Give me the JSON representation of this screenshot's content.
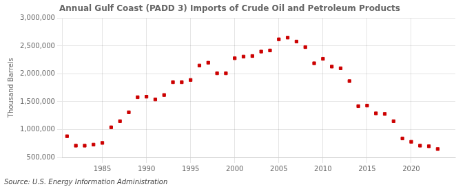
{
  "chart_data": {
    "type": "scatter",
    "title": "Annual Gulf Coast (PADD 3) Imports of Crude Oil and Petroleum Products",
    "ylabel": "Thousand Barrels",
    "annotation": "Source: U.S. Energy Information Administration",
    "color": "#cc0000",
    "marker": "square",
    "grid": true,
    "xlim": [
      1980.5,
      2025
    ],
    "xticks": [
      1985,
      1990,
      1995,
      2000,
      2005,
      2010,
      2015,
      2020
    ],
    "ylim": [
      500000,
      3000000
    ],
    "yticks": [
      {
        "value": 500000,
        "label": "500,000"
      },
      {
        "value": 1000000,
        "label": "1,000,000"
      },
      {
        "value": 1500000,
        "label": "1,500,000"
      },
      {
        "value": 2000000,
        "label": "2,000,000"
      },
      {
        "value": 2500000,
        "label": "2,500,000"
      },
      {
        "value": 3000000,
        "label": "3,000,000"
      }
    ],
    "x": [
      1981,
      1982,
      1983,
      1984,
      1985,
      1986,
      1987,
      1988,
      1989,
      1990,
      1991,
      1992,
      1993,
      1994,
      1995,
      1996,
      1997,
      1998,
      1999,
      2000,
      2001,
      2002,
      2003,
      2004,
      2005,
      2006,
      2007,
      2008,
      2009,
      2010,
      2011,
      2012,
      2013,
      2014,
      2015,
      2016,
      2017,
      2018,
      2019,
      2020,
      2021,
      2022,
      2023
    ],
    "values": [
      880000,
      710000,
      710000,
      730000,
      760000,
      1040000,
      1150000,
      1310000,
      1580000,
      1590000,
      1540000,
      1620000,
      1850000,
      1850000,
      1890000,
      2150000,
      2200000,
      2010000,
      2010000,
      2280000,
      2310000,
      2320000,
      2400000,
      2420000,
      2620000,
      2650000,
      2580000,
      2480000,
      2190000,
      2270000,
      2130000,
      2100000,
      1870000,
      1420000,
      1430000,
      1290000,
      1280000,
      1150000,
      840000,
      780000,
      710000,
      700000,
      650000
    ]
  }
}
